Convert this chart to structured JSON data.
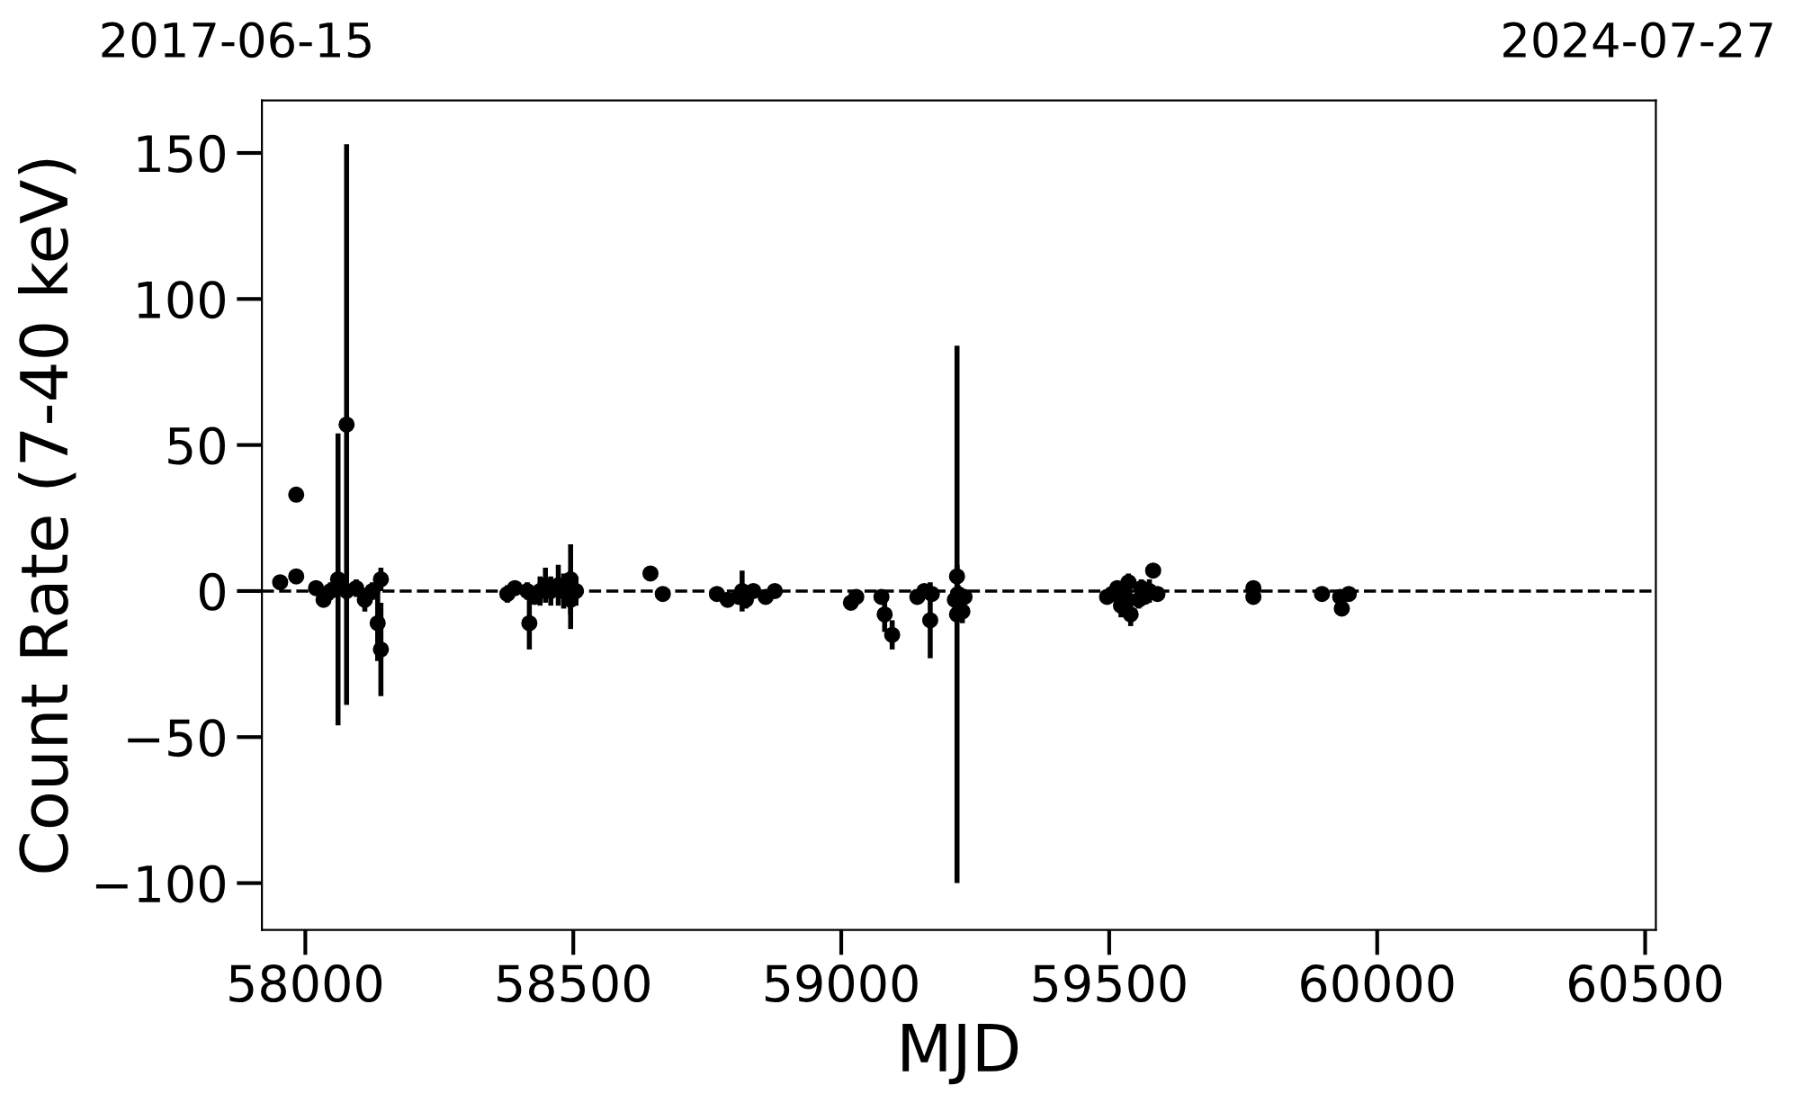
{
  "chart_data": {
    "type": "scatter",
    "xlabel": "MJD",
    "ylabel": "Count Rate (7-40 keV)",
    "annotations": [
      "2017-06-15",
      "2024-07-27"
    ],
    "xlim": [
      57919,
      60520
    ],
    "ylim": [
      -116,
      168
    ],
    "xticks": [
      58000,
      58500,
      59000,
      59500,
      60000,
      60500
    ],
    "yticks": [
      {
        "value": -100,
        "label": "−100"
      },
      {
        "value": -50,
        "label": "−50"
      },
      0,
      50,
      100,
      150
    ],
    "grid": false,
    "marker": "circle",
    "ref_lines": [
      {
        "axis": "y",
        "value": 0,
        "label": null,
        "color": "#000000",
        "line_style": "dashed"
      }
    ],
    "series": [
      {
        "color": "#000000",
        "x": [
          57953,
          57983,
          57983,
          58020,
          58034,
          58047,
          58061,
          58077,
          58077,
          58095,
          58111,
          58125,
          58135,
          58141,
          58141,
          58377,
          58391,
          58414,
          58418,
          58428,
          58438,
          58448,
          58458,
          58472,
          58482,
          58495,
          58495,
          58505,
          58644,
          58667,
          58768,
          58788,
          58809,
          58815,
          58822,
          58836,
          58859,
          58876,
          59018,
          59028,
          59075,
          59081,
          59095,
          59142,
          59155,
          59166,
          59169,
          59212,
          59216,
          59216,
          59218,
          59226,
          59230,
          59496,
          59505,
          59515,
          59522,
          59530,
          59536,
          59540,
          59555,
          59560,
          59566,
          59575,
          59582,
          59590,
          59769,
          59769,
          59897,
          59931,
          59934,
          59947
        ],
        "values": [
          3,
          33,
          5,
          1,
          -3,
          0,
          4,
          57,
          0,
          1,
          -3,
          0,
          -11,
          4,
          -20,
          -1,
          1,
          0,
          -11,
          -2,
          0,
          2,
          0,
          2,
          0,
          4,
          -3,
          0,
          6,
          -1,
          -1,
          -3,
          -2,
          0,
          -3,
          0,
          -2,
          0,
          -4,
          -2,
          -2,
          -8,
          -15,
          -2,
          0,
          -10,
          -1,
          -3,
          -8,
          5,
          -1,
          -7,
          -2,
          -2,
          -1,
          1,
          -5,
          -2,
          3,
          -8,
          -3,
          1,
          -2,
          0,
          7,
          -1,
          1,
          -2,
          -1,
          -2,
          -6,
          -1
        ],
        "errors": [
          2,
          2,
          2,
          2,
          2,
          3,
          50,
          96,
          3,
          3,
          4,
          3,
          13,
          4,
          16,
          3,
          2,
          3,
          9,
          2,
          5,
          6,
          5,
          7,
          6,
          12,
          10,
          5,
          1,
          1,
          2,
          2,
          2,
          7,
          3,
          2,
          2,
          2,
          2,
          2,
          2,
          6,
          5,
          2,
          2,
          13,
          2,
          3,
          92,
          4,
          3,
          4,
          2,
          2,
          2,
          2,
          4,
          2,
          3,
          4,
          3,
          3,
          2,
          4,
          2,
          2,
          2,
          2,
          1,
          1,
          2,
          1
        ]
      }
    ]
  }
}
